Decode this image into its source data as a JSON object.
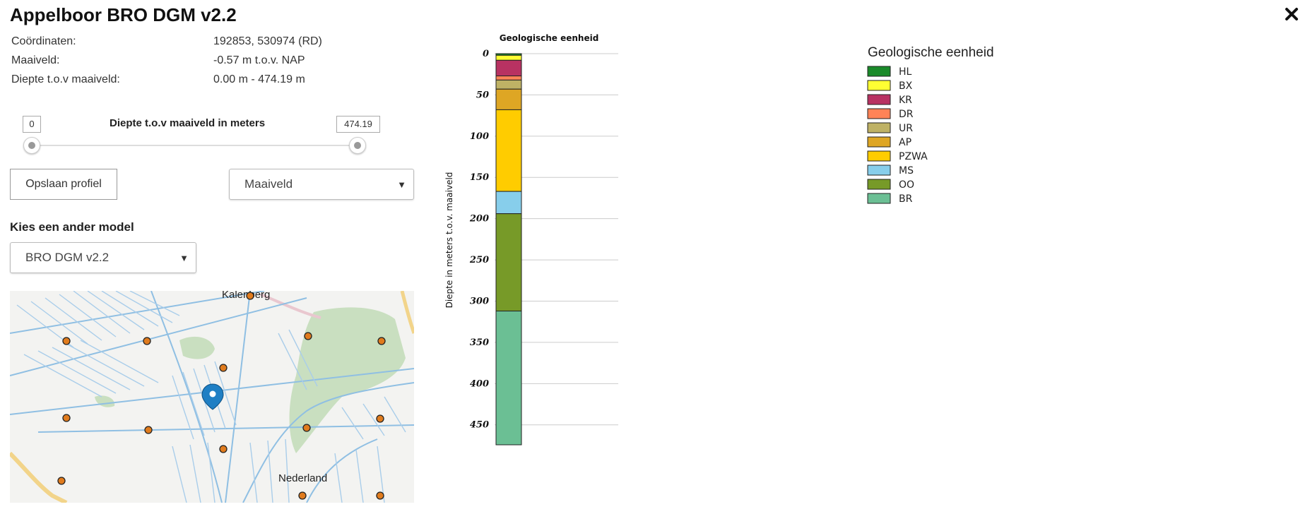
{
  "window": {
    "title": "Appelboor BRO DGM v2.2"
  },
  "info": {
    "coordinates_label": "Coördinaten:",
    "coordinates_value": "192853, 530974 (RD)",
    "surface_label": "Maaiveld:",
    "surface_value": "-0.57 m t.o.v. NAP",
    "depth_label": "Diepte t.o.v maaiveld:",
    "depth_value": "0.00 m - 474.19 m"
  },
  "slider": {
    "label": "Diepte t.o.v maaiveld in meters",
    "min_value": "0",
    "max_value": "474.19"
  },
  "buttons": {
    "save_profile": "Opslaan profiel"
  },
  "reference_select": {
    "selected": "Maaiveld"
  },
  "model": {
    "label": "Kies een ander model",
    "selected": "BRO DGM v2.2"
  },
  "map": {
    "labels": [
      "Kalenberg",
      "Nederland"
    ],
    "colors": {
      "water": "#a9cdea",
      "forest": "#c9dfc0",
      "road": "#f2d48a",
      "marker": "#e07b1d",
      "pin": "#1f7fc4"
    }
  },
  "chart_data": {
    "type": "bar",
    "title": "Geologische eenheid",
    "ylabel": "Diepte in meters t.o.v. maaiveld",
    "ylim": [
      0,
      474.19
    ],
    "yticks": [
      0,
      50,
      100,
      150,
      200,
      250,
      300,
      350,
      400,
      450
    ],
    "layers": [
      {
        "unit": "HL",
        "top": 0,
        "bottom": 2,
        "color": "#1a8a2a"
      },
      {
        "unit": "BX",
        "top": 2,
        "bottom": 8,
        "color": "#ffff33"
      },
      {
        "unit": "KR",
        "top": 8,
        "bottom": 27,
        "color": "#b83262"
      },
      {
        "unit": "DR",
        "top": 27,
        "bottom": 32,
        "color": "#ff8357"
      },
      {
        "unit": "UR",
        "top": 32,
        "bottom": 43,
        "color": "#bfb265"
      },
      {
        "unit": "AP",
        "top": 43,
        "bottom": 68,
        "color": "#dea624"
      },
      {
        "unit": "PZWA",
        "top": 68,
        "bottom": 167,
        "color": "#ffcc00"
      },
      {
        "unit": "MS",
        "top": 167,
        "bottom": 194,
        "color": "#87ceeb"
      },
      {
        "unit": "OO",
        "top": 194,
        "bottom": 312,
        "color": "#779a28"
      },
      {
        "unit": "BR",
        "top": 312,
        "bottom": 474.19,
        "color": "#6bbf94"
      }
    ]
  },
  "legend": {
    "title": "Geologische eenheid",
    "items": [
      {
        "label": "HL",
        "color": "#1a8a2a"
      },
      {
        "label": "BX",
        "color": "#ffff33"
      },
      {
        "label": "KR",
        "color": "#b83262"
      },
      {
        "label": "DR",
        "color": "#ff8357"
      },
      {
        "label": "UR",
        "color": "#bfb265"
      },
      {
        "label": "AP",
        "color": "#dea624"
      },
      {
        "label": "PZWA",
        "color": "#ffcc00"
      },
      {
        "label": "MS",
        "color": "#87ceeb"
      },
      {
        "label": "OO",
        "color": "#779a28"
      },
      {
        "label": "BR",
        "color": "#6bbf94"
      }
    ]
  }
}
